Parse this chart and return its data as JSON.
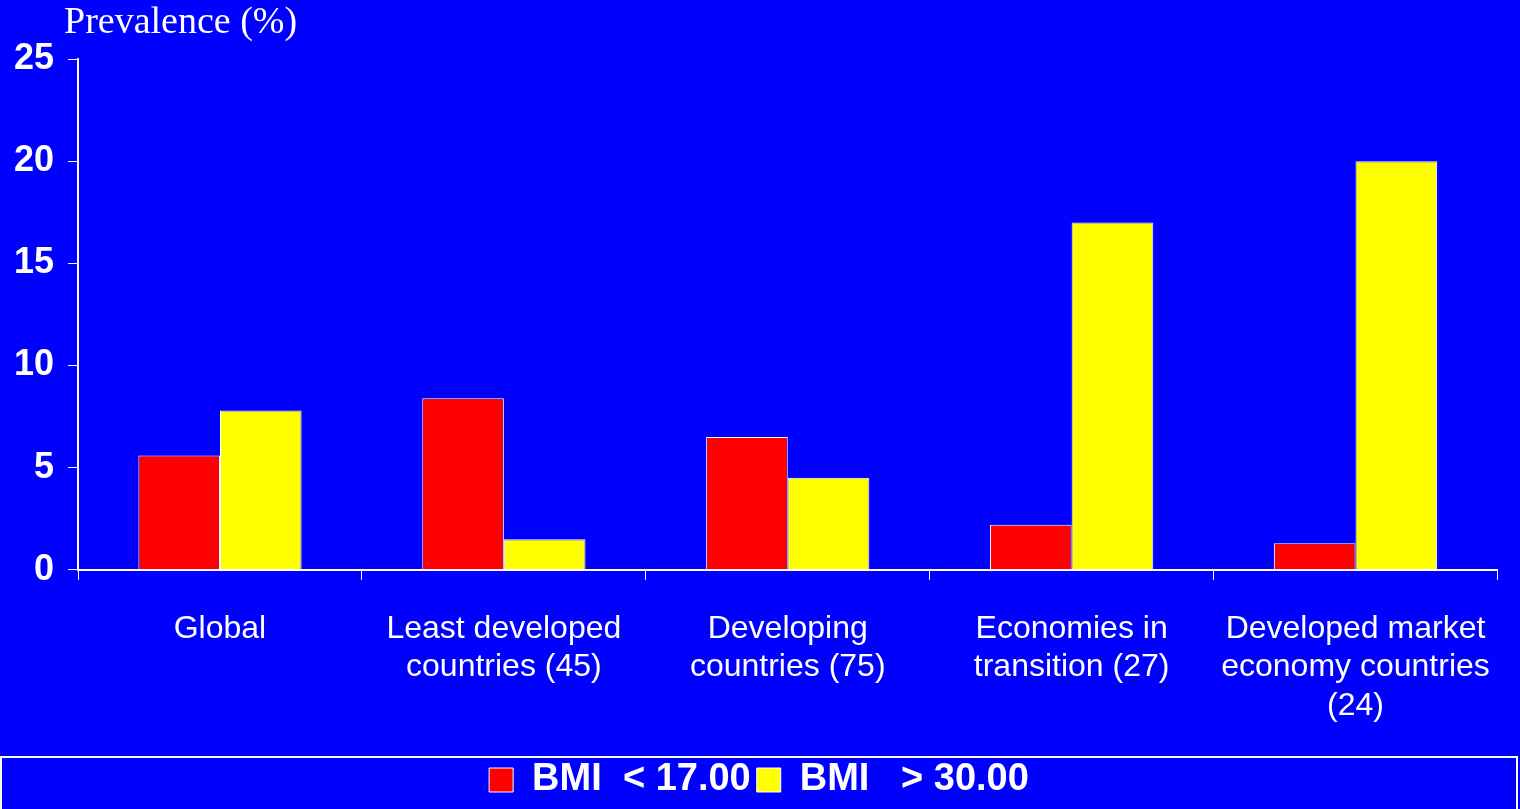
{
  "chart_data": {
    "type": "bar",
    "ylabel": "Prevalence (%)",
    "categories": [
      "Global",
      "Least developed countries (45)",
      "Developing countries (75)",
      "Economies in transition (27)",
      "Developed market economy countries (24)"
    ],
    "series": [
      {
        "name": "BMI  < 17.00",
        "color": "#ff0000",
        "values": [
          5.6,
          8.4,
          6.5,
          2.2,
          1.3
        ]
      },
      {
        "name": "BMI   > 30.00",
        "color": "#ffff00",
        "values": [
          7.8,
          1.5,
          4.5,
          17,
          20
        ]
      }
    ],
    "ylim": [
      0,
      25
    ],
    "yticks": [
      0,
      5,
      10,
      15,
      20,
      25
    ],
    "grid": false,
    "legend": "bottom"
  }
}
